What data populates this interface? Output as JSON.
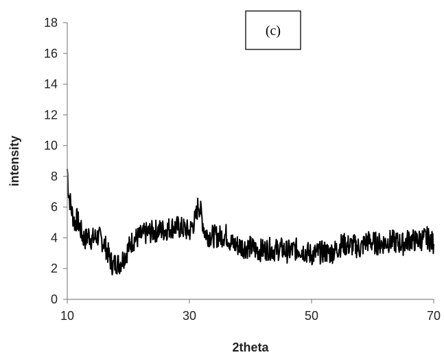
{
  "chart_data": {
    "type": "line",
    "title": "",
    "annotation": "(c)",
    "xlabel": "2theta",
    "ylabel": "intensity",
    "xlim": [
      10,
      70
    ],
    "ylim": [
      0,
      18
    ],
    "x_ticks": [
      10,
      30,
      50,
      70
    ],
    "y_ticks": [
      0,
      2,
      4,
      6,
      8,
      10,
      12,
      14,
      16,
      18
    ],
    "grid": false,
    "legend": "none",
    "series": [
      {
        "color": "#000000",
        "points": [
          [
            10,
            8.5
          ],
          [
            10.2,
            7.0
          ],
          [
            10.5,
            6.3
          ],
          [
            10.8,
            5.6
          ],
          [
            11.2,
            5.0
          ],
          [
            11.6,
            5.2
          ],
          [
            12.0,
            4.8
          ],
          [
            12.5,
            4.1
          ],
          [
            13.0,
            3.9
          ],
          [
            13.5,
            4.2
          ],
          [
            14.0,
            3.9
          ],
          [
            14.5,
            4.0
          ],
          [
            15.0,
            4.1
          ],
          [
            15.5,
            3.9
          ],
          [
            16.0,
            3.7
          ],
          [
            16.5,
            3.2
          ],
          [
            17.0,
            2.6
          ],
          [
            17.5,
            2.2
          ],
          [
            18.0,
            2.4
          ],
          [
            18.5,
            2.3
          ],
          [
            19.0,
            2.6
          ],
          [
            19.5,
            2.9
          ],
          [
            20.0,
            3.3
          ],
          [
            20.5,
            3.7
          ],
          [
            21.0,
            3.9
          ],
          [
            22.0,
            4.1
          ],
          [
            23.0,
            4.3
          ],
          [
            24.0,
            4.4
          ],
          [
            25.0,
            4.5
          ],
          [
            26.0,
            4.5
          ],
          [
            27.0,
            4.7
          ],
          [
            28.0,
            4.7
          ],
          [
            29.0,
            4.6
          ],
          [
            30.0,
            4.4
          ],
          [
            31.0,
            5.2
          ],
          [
            31.5,
            6.3
          ],
          [
            32.0,
            5.4
          ],
          [
            32.5,
            4.4
          ],
          [
            33.0,
            4.2
          ],
          [
            34.0,
            4.1
          ],
          [
            35.0,
            4.1
          ],
          [
            36.0,
            4.2
          ],
          [
            37.0,
            3.6
          ],
          [
            38.0,
            3.5
          ],
          [
            39.0,
            3.4
          ],
          [
            40.0,
            3.4
          ],
          [
            41.0,
            3.2
          ],
          [
            42.0,
            3.2
          ],
          [
            43.0,
            3.3
          ],
          [
            44.0,
            3.2
          ],
          [
            45.0,
            3.3
          ],
          [
            46.0,
            3.1
          ],
          [
            47.0,
            3.2
          ],
          [
            48.0,
            3.3
          ],
          [
            49.0,
            3.1
          ],
          [
            50.0,
            2.9
          ],
          [
            51.0,
            3.0
          ],
          [
            52.0,
            3.1
          ],
          [
            53.0,
            3.0
          ],
          [
            54.0,
            3.2
          ],
          [
            55.0,
            3.6
          ],
          [
            56.0,
            3.5
          ],
          [
            57.0,
            3.5
          ],
          [
            58.0,
            3.3
          ],
          [
            59.0,
            3.8
          ],
          [
            60.0,
            3.7
          ],
          [
            61.0,
            3.6
          ],
          [
            62.0,
            3.7
          ],
          [
            63.0,
            3.8
          ],
          [
            64.0,
            3.7
          ],
          [
            65.0,
            3.6
          ],
          [
            66.0,
            3.9
          ],
          [
            67.0,
            3.8
          ],
          [
            68.0,
            3.9
          ],
          [
            69.0,
            4.0
          ],
          [
            70.0,
            3.6
          ]
        ]
      }
    ]
  }
}
